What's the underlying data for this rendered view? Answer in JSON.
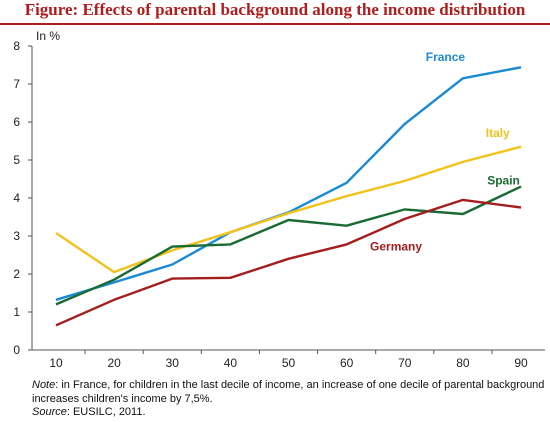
{
  "title": "Figure: Effects of parental background along the income distribution",
  "note_label": "Note",
  "note_text": ": in France, for children in the last decile of income, an increase of one decile of parental background increases children's income by 7,5%.",
  "source_label": "Source",
  "source_text": ": EUSILC, 2011.",
  "chart_data": {
    "type": "line",
    "title": "Figure: Effects of parental background along the income distribution",
    "ylabel": "In %",
    "xlabel": "",
    "x": [
      10,
      20,
      30,
      40,
      50,
      60,
      70,
      80,
      90
    ],
    "xlim": [
      10,
      90
    ],
    "ylim": [
      0,
      8
    ],
    "yticks": [
      0,
      1,
      2,
      3,
      4,
      5,
      6,
      7,
      8
    ],
    "grid": false,
    "legend": "labels on lines",
    "series": [
      {
        "name": "France",
        "color": "#1a8ad4",
        "values": [
          1.32,
          1.78,
          2.25,
          3.1,
          3.62,
          4.4,
          5.95,
          7.15,
          7.44
        ]
      },
      {
        "name": "Italy",
        "color": "#f2c21b",
        "values": [
          3.08,
          2.05,
          2.62,
          3.1,
          3.6,
          4.05,
          4.45,
          4.95,
          5.35
        ]
      },
      {
        "name": "Spain",
        "color": "#1a6b33",
        "values": [
          1.2,
          1.85,
          2.72,
          2.78,
          3.42,
          3.27,
          3.7,
          3.58,
          4.3
        ]
      },
      {
        "name": "Germany",
        "color": "#a51e1e",
        "values": [
          0.65,
          1.32,
          1.88,
          1.9,
          2.4,
          2.78,
          3.45,
          3.95,
          3.75
        ]
      }
    ]
  }
}
